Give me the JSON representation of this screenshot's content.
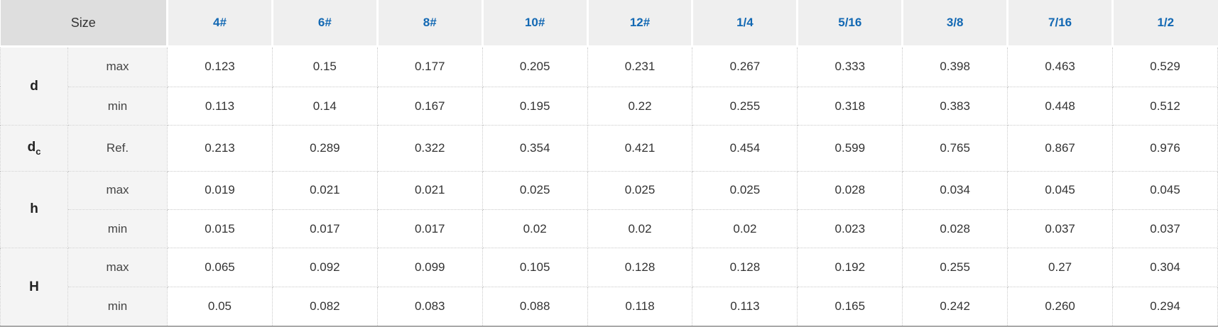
{
  "styles": {
    "accent_color": "#1268b3",
    "corner_header_bg": "#dedede",
    "column_header_bg": "#efefef",
    "label_column_bg": "#f4f4f4",
    "value_cell_bg": "#ffffff",
    "grid_border_color": "#c9c9c9",
    "bottom_rule_color": "#a9a9a9"
  },
  "chart_data": {
    "type": "table",
    "title": "",
    "corner_header": "Size",
    "column_headers": [
      "4#",
      "6#",
      "8#",
      "10#",
      "12#",
      "1/4",
      "5/16",
      "3/8",
      "7/16",
      "1/2"
    ],
    "groups": [
      {
        "label": "d",
        "sub": "",
        "rows": [
          {
            "measure": "max",
            "values": [
              "0.123",
              "0.15",
              "0.177",
              "0.205",
              "0.231",
              "0.267",
              "0.333",
              "0.398",
              "0.463",
              "0.529"
            ]
          },
          {
            "measure": "min",
            "values": [
              "0.113",
              "0.14",
              "0.167",
              "0.195",
              "0.22",
              "0.255",
              "0.318",
              "0.383",
              "0.448",
              "0.512"
            ]
          }
        ]
      },
      {
        "label": "d",
        "sub": "c",
        "rows": [
          {
            "measure": "Ref.",
            "values": [
              "0.213",
              "0.289",
              "0.322",
              "0.354",
              "0.421",
              "0.454",
              "0.599",
              "0.765",
              "0.867",
              "0.976"
            ]
          }
        ]
      },
      {
        "label": "h",
        "sub": "",
        "rows": [
          {
            "measure": "max",
            "values": [
              "0.019",
              "0.021",
              "0.021",
              "0.025",
              "0.025",
              "0.025",
              "0.028",
              "0.034",
              "0.045",
              "0.045"
            ]
          },
          {
            "measure": "min",
            "values": [
              "0.015",
              "0.017",
              "0.017",
              "0.02",
              "0.02",
              "0.02",
              "0.023",
              "0.028",
              "0.037",
              "0.037"
            ]
          }
        ]
      },
      {
        "label": "H",
        "sub": "",
        "rows": [
          {
            "measure": "max",
            "values": [
              "0.065",
              "0.092",
              "0.099",
              "0.105",
              "0.128",
              "0.128",
              "0.192",
              "0.255",
              "0.27",
              "0.304"
            ]
          },
          {
            "measure": "min",
            "values": [
              "0.05",
              "0.082",
              "0.083",
              "0.088",
              "0.118",
              "0.113",
              "0.165",
              "0.242",
              "0.260",
              "0.294"
            ]
          }
        ]
      }
    ]
  }
}
